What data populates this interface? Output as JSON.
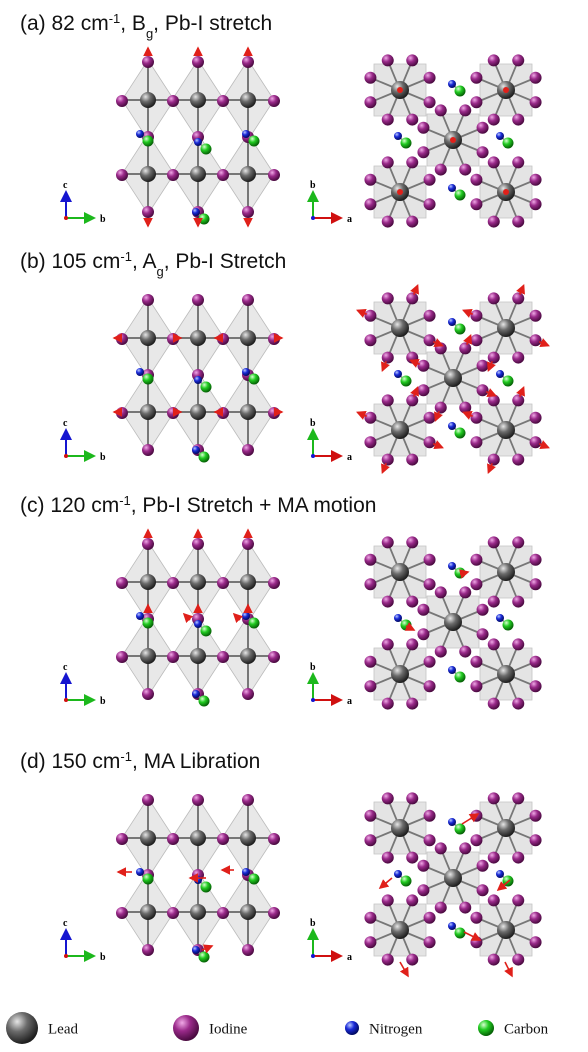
{
  "panels": [
    {
      "title": [
        {
          "text": "(a) 82 cm"
        },
        {
          "text": "-1",
          "style": "sup"
        },
        {
          "text": ", B"
        },
        {
          "text": "g",
          "style": "sub"
        },
        {
          "text": ", Pb-I stretch"
        }
      ],
      "left_axes": [
        "c",
        "b"
      ],
      "right_axes": [
        "b",
        "a"
      ]
    },
    {
      "title": [
        {
          "text": "(b) 105 cm"
        },
        {
          "text": "-1",
          "style": "sup"
        },
        {
          "text": ", A"
        },
        {
          "text": "g",
          "style": "sub"
        },
        {
          "text": ", Pb-I Stretch"
        }
      ],
      "left_axes": [
        "c",
        "b"
      ],
      "right_axes": [
        "b",
        "a"
      ]
    },
    {
      "title": [
        {
          "text": "(c) 120 cm"
        },
        {
          "text": "-1",
          "style": "sup"
        },
        {
          "text": ", Pb-I Stretch + MA motion"
        }
      ],
      "left_axes": [
        "c",
        "b"
      ],
      "right_axes": [
        "b",
        "a"
      ]
    },
    {
      "title": [
        {
          "text": "(d) 150 cm"
        },
        {
          "text": "-1",
          "style": "sup"
        },
        {
          "text": ", MA Libration"
        }
      ],
      "left_axes": [
        "c",
        "b"
      ],
      "right_axes": [
        "b",
        "a"
      ]
    }
  ],
  "legend": [
    "Lead",
    "Iodine",
    "Nitrogen",
    "Carbon"
  ]
}
